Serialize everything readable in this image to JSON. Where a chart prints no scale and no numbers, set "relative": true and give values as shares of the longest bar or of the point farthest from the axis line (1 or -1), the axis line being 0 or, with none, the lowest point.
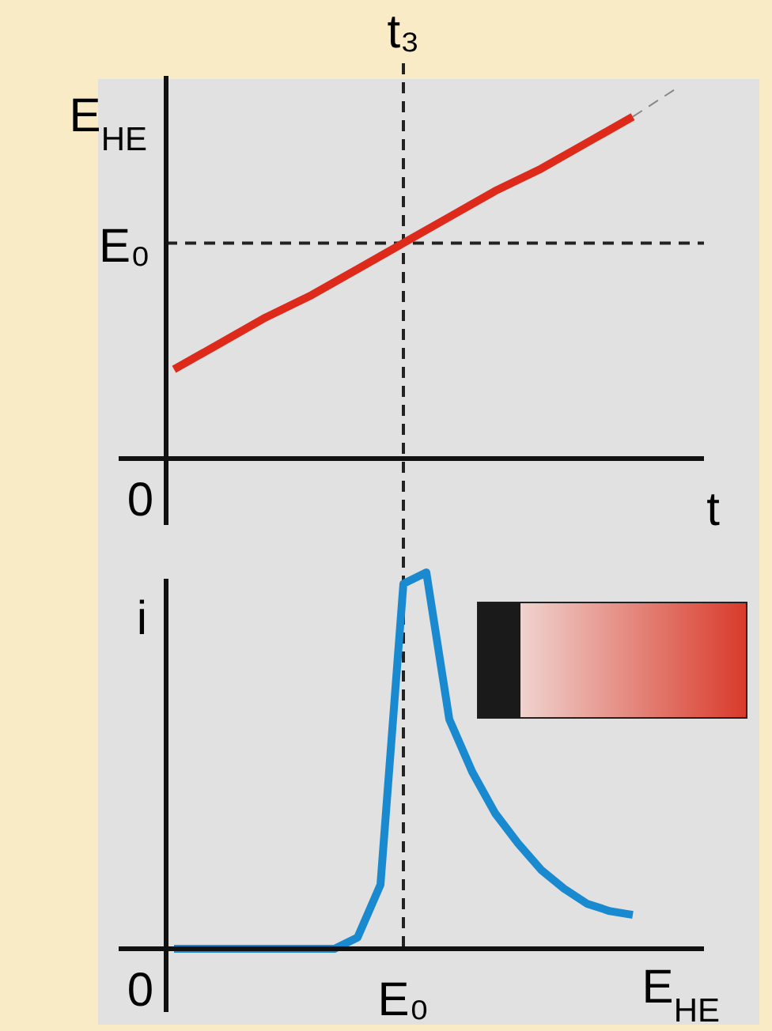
{
  "chart_data": [
    {
      "type": "line",
      "relative": true,
      "categories": [
        null,
        null,
        null,
        null,
        null,
        null,
        null,
        null,
        null,
        null,
        null,
        null
      ],
      "ylabel": "E$_{HE}$",
      "xlabel": "t",
      "annotations": [
        "0",
        "t₃"
      ],
      "ref_lines": [
        {
          "axis": "y",
          "value": 0.58,
          "label": "E₀",
          "line_style": "dashed",
          "color": "#222222"
        }
      ],
      "series": [
        {
          "color": "#dd2a1b",
          "line_style": "solid",
          "values": [
            0.24,
            0.31,
            0.38,
            0.44,
            0.51,
            0.58,
            0.65,
            0.72,
            0.78,
            0.85,
            0.92,
            null
          ]
        },
        {
          "color": "#888888",
          "line_style": "dashed",
          "values": [
            null,
            null,
            null,
            null,
            null,
            null,
            null,
            null,
            null,
            null,
            0.92,
            1
          ]
        }
      ]
    },
    {
      "type": "line",
      "relative": true,
      "categories": [
        null,
        null,
        null,
        null,
        null,
        null,
        null,
        null,
        null,
        null,
        null,
        null,
        null,
        null,
        null,
        null,
        null,
        null,
        null,
        null,
        null
      ],
      "ylabel": "i",
      "xlabel": "E$_{HE}$",
      "annotations": [
        "0",
        "E₀"
      ],
      "series": [
        {
          "color": "#1a8ad0",
          "line_style": "solid",
          "values": [
            0,
            0,
            0,
            0,
            0,
            0,
            0,
            0,
            0.03,
            0.17,
            0.97,
            1,
            0.61,
            0.47,
            0.36,
            0.28,
            0.21,
            0.16,
            0.12,
            0.1,
            0.09
          ]
        }
      ]
    }
  ]
}
